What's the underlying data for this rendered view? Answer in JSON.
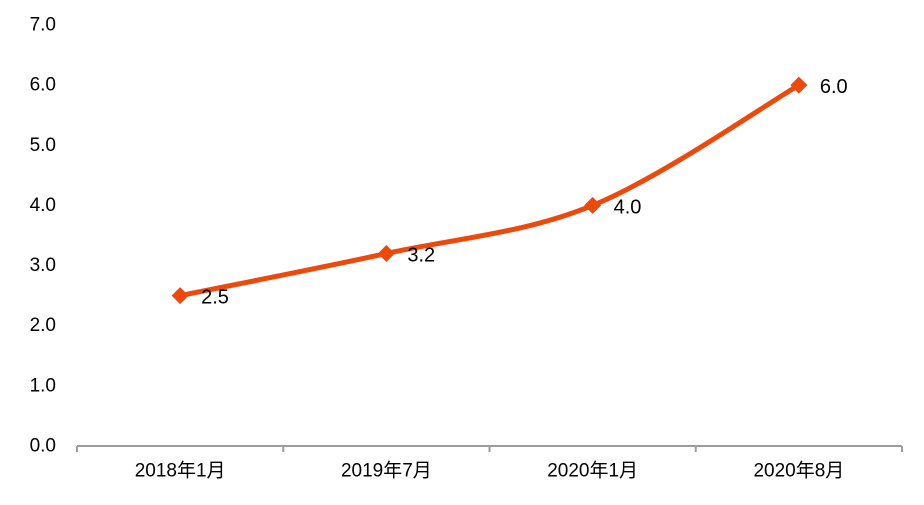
{
  "chart_data": {
    "type": "line",
    "title": "",
    "categories": [
      "2018年1月",
      "2019年7月",
      "2020年1月",
      "2020年8月"
    ],
    "series": [
      {
        "values": [
          2.5,
          3.2,
          4.0,
          6.0
        ],
        "data_labels": [
          "2.5",
          "3.2",
          "4.0",
          "6.0"
        ],
        "color": "#EC4A0D",
        "marker": "diamond",
        "smoothed": true
      }
    ],
    "xlabel": "",
    "ylabel": "",
    "ylim": [
      0.0,
      7.0
    ],
    "y_tick_interval": 1.0,
    "y_tick_labels": [
      "0.0",
      "1.0",
      "2.0",
      "3.0",
      "4.0",
      "5.0",
      "6.0",
      "7.0"
    ],
    "grid": false,
    "legend": "none",
    "colors": {
      "axis": "#9C9C9C",
      "text": "#000000",
      "background": "#FFFFFF"
    }
  }
}
